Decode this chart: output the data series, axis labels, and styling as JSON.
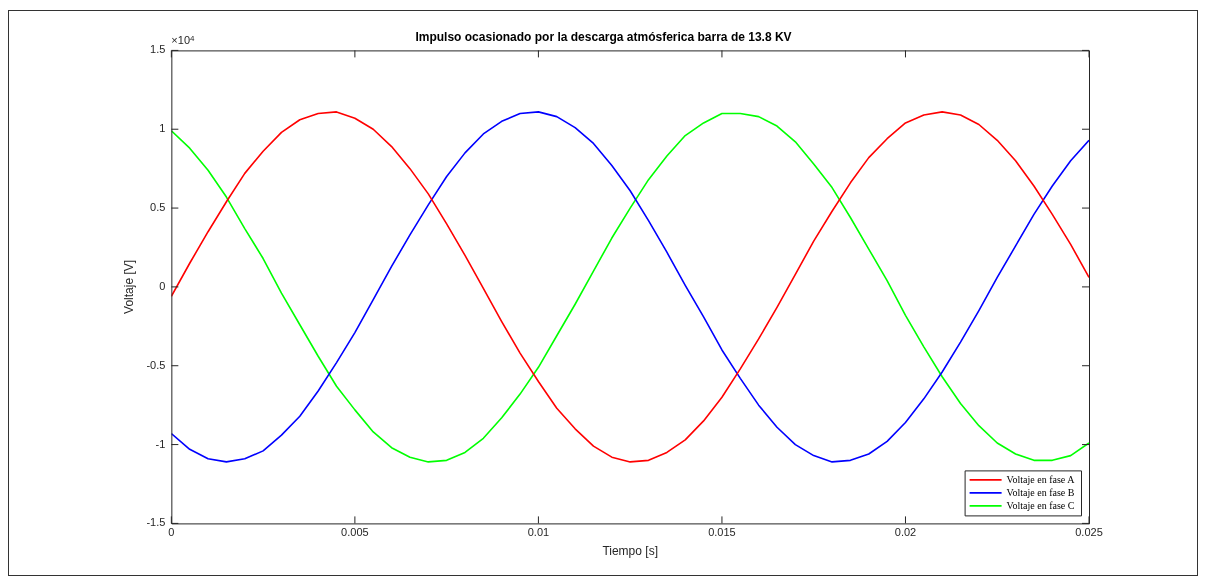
{
  "chart_data": {
    "type": "line",
    "title": "Impulso ocasionado por la descarga atmósferica barra de 13.8 KV",
    "xlabel": "Tiempo [s]",
    "ylabel": "Voltaje [V]",
    "annotations": [
      "×10$^{4}$"
    ],
    "x": [
      0,
      0.0005,
      0.001,
      0.0015,
      0.002,
      0.0025,
      0.003,
      0.0035,
      0.004,
      0.0045,
      0.005,
      0.0055,
      0.006,
      0.0065,
      0.007,
      0.0075,
      0.008,
      0.0085,
      0.009,
      0.0095,
      0.01,
      0.0105,
      0.011,
      0.0115,
      0.012,
      0.0125,
      0.013,
      0.0135,
      0.014,
      0.0145,
      0.015,
      0.0155,
      0.016,
      0.0165,
      0.017,
      0.0175,
      0.018,
      0.0185,
      0.019,
      0.0195,
      0.02,
      0.0205,
      0.021,
      0.0215,
      0.022,
      0.0225,
      0.023,
      0.0235,
      0.024,
      0.0245,
      0.025
    ],
    "series": [
      {
        "name": "Voltaje en fase A",
        "color": "#ff0000",
        "values": [
          -0.06,
          0.15,
          0.35,
          0.54,
          0.72,
          0.86,
          0.98,
          1.06,
          1.1,
          1.11,
          1.07,
          1,
          0.89,
          0.75,
          0.59,
          0.4,
          0.2,
          -0.01,
          -0.22,
          -0.42,
          -0.6,
          -0.77,
          -0.9,
          -1.01,
          -1.08,
          -1.11,
          -1.1,
          -1.05,
          -0.97,
          -0.85,
          -0.7,
          -0.52,
          -0.33,
          -0.13,
          0.08,
          0.29,
          0.48,
          0.66,
          0.82,
          0.94,
          1.04,
          1.09,
          1.11,
          1.09,
          1.03,
          0.93,
          0.8,
          0.64,
          0.46,
          0.27,
          0.06
        ]
      },
      {
        "name": "Voltaje en fase B",
        "color": "#0000ff",
        "values": [
          -0.93,
          -1.03,
          -1.09,
          -1.11,
          -1.09,
          -1.04,
          -0.94,
          -0.82,
          -0.66,
          -0.48,
          -0.29,
          -0.08,
          0.13,
          0.33,
          0.52,
          0.7,
          0.85,
          0.97,
          1.05,
          1.1,
          1.11,
          1.08,
          1.01,
          0.91,
          0.77,
          0.61,
          0.42,
          0.22,
          0.01,
          -0.19,
          -0.4,
          -0.58,
          -0.75,
          -0.89,
          -1,
          -1.07,
          -1.11,
          -1.1,
          -1.06,
          -0.98,
          -0.86,
          -0.71,
          -0.54,
          -0.35,
          -0.15,
          0.06,
          0.26,
          0.46,
          0.64,
          0.8,
          0.93
        ]
      },
      {
        "name": "Voltaje en fase C",
        "color": "#00ff00",
        "values": [
          0.99,
          0.88,
          0.74,
          0.57,
          0.37,
          0.18,
          -0.04,
          -0.24,
          -0.44,
          -0.63,
          -0.78,
          -0.92,
          -1.02,
          -1.08,
          -1.11,
          -1.1,
          -1.05,
          -0.96,
          -0.83,
          -0.68,
          -0.51,
          -0.31,
          -0.11,
          0.1,
          0.31,
          0.5,
          0.68,
          0.83,
          0.96,
          1.04,
          1.1,
          1.1,
          1.08,
          1.02,
          0.92,
          0.78,
          0.63,
          0.44,
          0.24,
          0.04,
          -0.18,
          -0.38,
          -0.57,
          -0.74,
          -0.88,
          -0.99,
          -1.06,
          -1.1,
          -1.1,
          -1.07,
          -0.99
        ]
      }
    ],
    "xlim": [
      0,
      0.025
    ],
    "xticks": [
      0,
      0.005,
      0.01,
      0.015,
      0.02,
      0.025
    ],
    "ylim": [
      -1.5,
      1.5
    ],
    "yticks": [
      -1.5,
      -1,
      -0.5,
      0,
      0.5,
      1,
      1.5
    ],
    "grid": false,
    "legend": "bottom right",
    "marker": "none",
    "line_style": "solid"
  }
}
